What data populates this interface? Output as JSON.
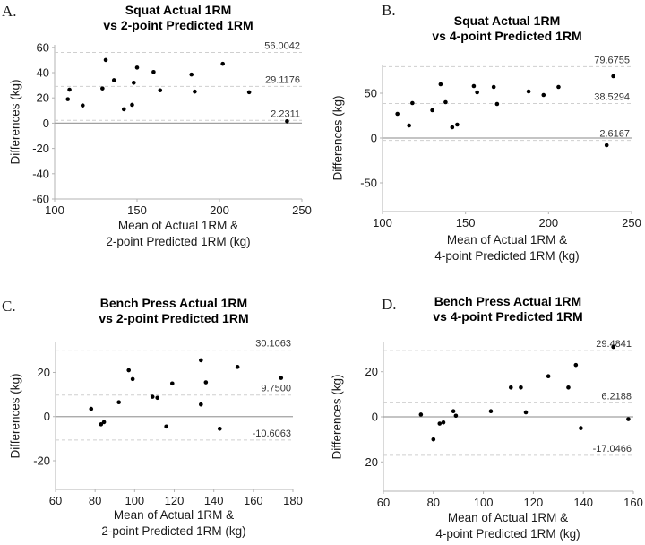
{
  "figure": {
    "background_color": "#ffffff",
    "point_color": "#000000",
    "spine_color": "#b3b3b3",
    "zero_line_color": "#a0a0a0",
    "loa_line_color": "#cfcfcf",
    "annotation_color": "#333333",
    "tick_label_color": "#1a1a1a",
    "title_color": "#000000"
  },
  "chart_data": [
    {
      "panel_label": "A.",
      "type": "scatter",
      "title_line1": "Squat Actual 1RM",
      "title_line2": "vs 2-point Predicted 1RM",
      "ylabel": "Differences (kg)",
      "xlabel_line1": "Mean of Actual 1RM &",
      "xlabel_line2": "2-point Predicted 1RM (kg)",
      "xlim": [
        100,
        250
      ],
      "ylim": [
        -60,
        62
      ],
      "xticks": [
        100,
        150,
        200,
        250
      ],
      "yticks": [
        -60,
        -40,
        -20,
        0,
        20,
        40,
        60
      ],
      "grid": false,
      "zero_line": 0,
      "loa_lines": [
        {
          "name": "upper",
          "value": 56.0042,
          "label": "56.0042"
        },
        {
          "name": "mean",
          "value": 29.1176,
          "label": "29.1176"
        },
        {
          "name": "lower",
          "value": 2.2311,
          "label": "2.2311"
        }
      ],
      "points": [
        [
          109,
          26.5
        ],
        [
          108,
          19
        ],
        [
          117,
          14
        ],
        [
          129,
          27.5
        ],
        [
          131,
          50
        ],
        [
          136,
          34
        ],
        [
          142,
          11
        ],
        [
          147,
          14.5
        ],
        [
          148,
          32
        ],
        [
          150,
          44
        ],
        [
          160,
          40.5
        ],
        [
          164,
          26
        ],
        [
          183,
          38.5
        ],
        [
          185,
          25
        ],
        [
          202,
          47
        ],
        [
          218,
          24.5
        ],
        [
          241,
          1.5
        ]
      ]
    },
    {
      "panel_label": "B.",
      "type": "scatter",
      "title_line1": "Squat Actual 1RM",
      "title_line2": "vs 4-point Predicted 1RM",
      "ylabel": "Differences (kg)",
      "xlabel_line1": "Mean of Actual 1RM &",
      "xlabel_line2": "4-point Predicted 1RM (kg)",
      "xlim": [
        100,
        250
      ],
      "ylim": [
        -82,
        82
      ],
      "xticks": [
        100,
        150,
        200,
        250
      ],
      "yticks": [
        -50,
        0,
        50
      ],
      "grid": false,
      "zero_line": 0,
      "loa_lines": [
        {
          "name": "upper",
          "value": 79.6755,
          "label": "79.6755"
        },
        {
          "name": "mean",
          "value": 38.5294,
          "label": "38.5294"
        },
        {
          "name": "lower",
          "value": -2.6167,
          "label": "-2.6167"
        }
      ],
      "points": [
        [
          109,
          27
        ],
        [
          116,
          14
        ],
        [
          118,
          39
        ],
        [
          130,
          31
        ],
        [
          135,
          60
        ],
        [
          138,
          40
        ],
        [
          142,
          12
        ],
        [
          145,
          15
        ],
        [
          155,
          58
        ],
        [
          157,
          51
        ],
        [
          167,
          57
        ],
        [
          169,
          38
        ],
        [
          188,
          52
        ],
        [
          197,
          48
        ],
        [
          206,
          57
        ],
        [
          235,
          -8
        ],
        [
          239,
          69
        ]
      ]
    },
    {
      "panel_label": "C.",
      "type": "scatter",
      "title_line1": "Bench Press Actual 1RM",
      "title_line2": "vs 2-point Predicted 1RM",
      "ylabel": "Differences (kg)",
      "xlabel_line1": "Mean of Actual 1RM &",
      "xlabel_line2": "2-point Predicted 1RM (kg)",
      "xlim": [
        60,
        180
      ],
      "ylim": [
        -33,
        34
      ],
      "xticks": [
        60,
        80,
        100,
        120,
        140,
        160,
        180
      ],
      "yticks": [
        -20,
        0,
        20
      ],
      "grid": false,
      "zero_line": 0,
      "loa_lines": [
        {
          "name": "upper",
          "value": 30.1063,
          "label": "30.1063"
        },
        {
          "name": "mean",
          "value": 9.75,
          "label": "9.7500"
        },
        {
          "name": "lower",
          "value": -10.6063,
          "label": "-10.6063"
        }
      ],
      "points": [
        [
          78,
          3.5
        ],
        [
          83,
          -3.5
        ],
        [
          84.5,
          -2.5
        ],
        [
          92,
          6.5
        ],
        [
          97,
          21
        ],
        [
          99,
          17
        ],
        [
          109,
          9
        ],
        [
          111.5,
          8.5
        ],
        [
          116,
          -4.5
        ],
        [
          119,
          15
        ],
        [
          133.5,
          25.5
        ],
        [
          133.5,
          5.5
        ],
        [
          136,
          15.5
        ],
        [
          143,
          -5.5
        ],
        [
          152,
          22.5
        ],
        [
          174,
          17.5
        ]
      ]
    },
    {
      "panel_label": "D.",
      "type": "scatter",
      "title_line1": "Bench Press Actual 1RM",
      "title_line2": "vs 4-point Predicted 1RM",
      "ylabel": "Differences (kg)",
      "xlabel_line1": "Mean of Actual 1RM &",
      "xlabel_line2": "4-point Predicted 1RM (kg)",
      "xlim": [
        60,
        160
      ],
      "ylim": [
        -33,
        33
      ],
      "xticks": [
        60,
        80,
        100,
        120,
        140,
        160
      ],
      "yticks": [
        -20,
        0,
        20
      ],
      "grid": false,
      "zero_line": 0,
      "loa_lines": [
        {
          "name": "upper",
          "value": 29.4841,
          "label": "29.4841"
        },
        {
          "name": "mean",
          "value": 6.2188,
          "label": "6.2188"
        },
        {
          "name": "lower",
          "value": -17.0466,
          "label": "-17.0466"
        }
      ],
      "points": [
        [
          75,
          1
        ],
        [
          80,
          -10
        ],
        [
          82.5,
          -3
        ],
        [
          84,
          -2.5
        ],
        [
          88,
          2.5
        ],
        [
          89,
          0.5
        ],
        [
          103,
          2.5
        ],
        [
          111,
          13
        ],
        [
          115,
          13
        ],
        [
          117,
          2
        ],
        [
          126,
          18
        ],
        [
          134,
          13
        ],
        [
          137,
          23
        ],
        [
          139,
          -5
        ],
        [
          152,
          31
        ],
        [
          158,
          -1
        ]
      ]
    }
  ]
}
